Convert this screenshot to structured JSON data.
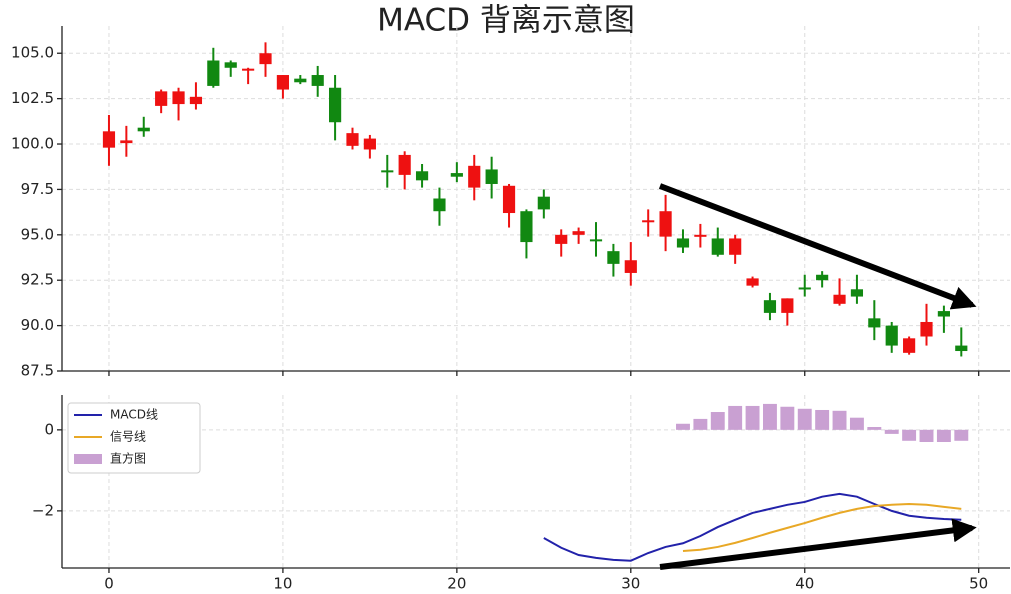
{
  "chart_data": [
    {
      "type": "candlestick",
      "title": "MACD 背离示意图",
      "x": [
        0,
        1,
        2,
        3,
        4,
        5,
        6,
        7,
        8,
        9,
        10,
        11,
        12,
        13,
        14,
        15,
        16,
        17,
        18,
        19,
        20,
        21,
        22,
        23,
        24,
        25,
        26,
        27,
        28,
        29,
        30,
        31,
        32,
        33,
        34,
        35,
        36,
        37,
        38,
        39,
        40,
        41,
        42,
        43,
        44,
        45,
        46,
        47,
        48,
        49
      ],
      "open": [
        99.8,
        100.05,
        100.9,
        102.1,
        102.2,
        102.2,
        104.6,
        104.5,
        104.05,
        104.4,
        103.0,
        103.6,
        103.8,
        103.1,
        99.9,
        99.7,
        98.55,
        98.3,
        98.5,
        97.0,
        98.4,
        97.6,
        98.6,
        96.2,
        96.3,
        97.1,
        94.5,
        95.0,
        94.75,
        94.1,
        92.9,
        95.7,
        94.9,
        94.8,
        94.9,
        94.8,
        93.9,
        92.2,
        91.4,
        90.7,
        92.1,
        92.8,
        91.2,
        92.0,
        90.4,
        90.0,
        88.5,
        89.4,
        90.8,
        88.9
      ],
      "high": [
        101.6,
        101.0,
        101.5,
        103.0,
        103.1,
        103.4,
        105.3,
        104.6,
        104.2,
        105.6,
        103.8,
        103.8,
        104.3,
        103.8,
        100.9,
        100.5,
        99.4,
        99.6,
        98.9,
        97.6,
        99.0,
        99.4,
        99.3,
        97.8,
        96.4,
        97.5,
        95.3,
        95.4,
        95.7,
        94.5,
        94.6,
        96.4,
        97.2,
        95.3,
        95.6,
        95.4,
        95.0,
        92.7,
        91.8,
        91.5,
        92.8,
        93.0,
        92.6,
        92.8,
        91.4,
        90.2,
        89.4,
        91.2,
        91.1,
        89.9
      ],
      "low": [
        98.8,
        99.3,
        100.4,
        101.7,
        101.3,
        101.9,
        103.1,
        103.7,
        103.3,
        103.7,
        102.5,
        103.3,
        102.6,
        100.2,
        99.7,
        99.2,
        97.6,
        97.5,
        97.6,
        95.5,
        97.9,
        96.9,
        97.0,
        95.4,
        93.7,
        95.9,
        93.8,
        94.5,
        93.8,
        92.7,
        92.2,
        94.9,
        94.1,
        94.0,
        94.3,
        93.8,
        93.4,
        92.1,
        90.3,
        90.0,
        91.6,
        92.1,
        91.1,
        91.2,
        89.2,
        88.5,
        88.4,
        88.9,
        89.6,
        88.3
      ],
      "close": [
        100.7,
        100.2,
        100.7,
        102.9,
        102.9,
        102.6,
        103.2,
        104.2,
        104.15,
        105.0,
        103.8,
        103.4,
        103.2,
        101.2,
        100.6,
        100.3,
        98.45,
        99.4,
        98.0,
        96.3,
        98.2,
        98.8,
        97.8,
        97.7,
        94.6,
        96.4,
        95.0,
        95.2,
        94.65,
        93.4,
        93.6,
        95.8,
        96.3,
        94.3,
        95.0,
        93.9,
        94.8,
        92.6,
        90.7,
        91.5,
        92.0,
        92.5,
        91.7,
        91.6,
        89.9,
        88.9,
        89.3,
        90.2,
        90.5,
        88.6
      ],
      "up_color": "#ee1111",
      "down_color": "#118811",
      "xlim": [
        -2.7,
        51.8
      ],
      "ylim": [
        87.5,
        106.5
      ],
      "yticks": [
        {
          "value": 87.5,
          "label": "87.5"
        },
        {
          "value": 90,
          "label": "90.0"
        },
        {
          "value": 92.5,
          "label": "92.5"
        },
        {
          "value": 95,
          "label": "95.0"
        },
        {
          "value": 97.5,
          "label": "97.5"
        },
        {
          "value": 100,
          "label": "100.0"
        },
        {
          "value": 102.5,
          "label": "102.5"
        },
        {
          "value": 105,
          "label": "105.0"
        }
      ],
      "grid": true
    },
    {
      "type": "line",
      "x": [
        0,
        1,
        2,
        3,
        4,
        5,
        6,
        7,
        8,
        9,
        10,
        11,
        12,
        13,
        14,
        15,
        16,
        17,
        18,
        19,
        20,
        21,
        22,
        23,
        24,
        25,
        26,
        27,
        28,
        29,
        30,
        31,
        32,
        33,
        34,
        35,
        36,
        37,
        38,
        39,
        40,
        41,
        42,
        43,
        44,
        45,
        46,
        47,
        48,
        49
      ],
      "series": [
        {
          "name": "MACD线",
          "color": "#2222aa",
          "type": "line",
          "values": [
            null,
            null,
            null,
            null,
            null,
            null,
            null,
            null,
            null,
            null,
            null,
            null,
            null,
            null,
            null,
            null,
            null,
            null,
            null,
            null,
            null,
            null,
            null,
            null,
            null,
            -2.67,
            -2.91,
            -3.09,
            -3.16,
            -3.21,
            -3.23,
            -3.04,
            -2.89,
            -2.8,
            -2.62,
            -2.4,
            -2.22,
            -2.05,
            -1.95,
            -1.85,
            -1.78,
            -1.65,
            -1.58,
            -1.65,
            -1.83,
            -2.0,
            -2.12,
            -2.17,
            -2.2,
            -2.22
          ]
        },
        {
          "name": "信号线",
          "color": "#e8a826",
          "type": "line",
          "values": [
            null,
            null,
            null,
            null,
            null,
            null,
            null,
            null,
            null,
            null,
            null,
            null,
            null,
            null,
            null,
            null,
            null,
            null,
            null,
            null,
            null,
            null,
            null,
            null,
            null,
            null,
            null,
            null,
            null,
            null,
            null,
            null,
            null,
            -2.99,
            -2.96,
            -2.89,
            -2.79,
            -2.67,
            -2.54,
            -2.42,
            -2.3,
            -2.17,
            -2.05,
            -1.95,
            -1.88,
            -1.85,
            -1.83,
            -1.85,
            -1.9,
            -1.95
          ]
        },
        {
          "name": "直方图",
          "color": "#c9a0d2",
          "type": "bar",
          "values": [
            null,
            null,
            null,
            null,
            null,
            null,
            null,
            null,
            null,
            null,
            null,
            null,
            null,
            null,
            null,
            null,
            null,
            null,
            null,
            null,
            null,
            null,
            null,
            null,
            null,
            null,
            null,
            null,
            null,
            null,
            null,
            null,
            null,
            0.15,
            0.27,
            0.44,
            0.59,
            0.59,
            0.64,
            0.57,
            0.52,
            0.49,
            0.47,
            0.3,
            0.07,
            -0.1,
            -0.27,
            -0.3,
            -0.3,
            -0.27
          ]
        }
      ],
      "xlim": [
        -2.7,
        51.8
      ],
      "ylim": [
        -3.41,
        0.86
      ],
      "xticks": [
        0,
        10,
        20,
        30,
        40,
        50
      ],
      "yticks": [
        {
          "value": -2,
          "label": "−2"
        },
        0
      ],
      "grid": true,
      "legend": "upper left"
    }
  ]
}
